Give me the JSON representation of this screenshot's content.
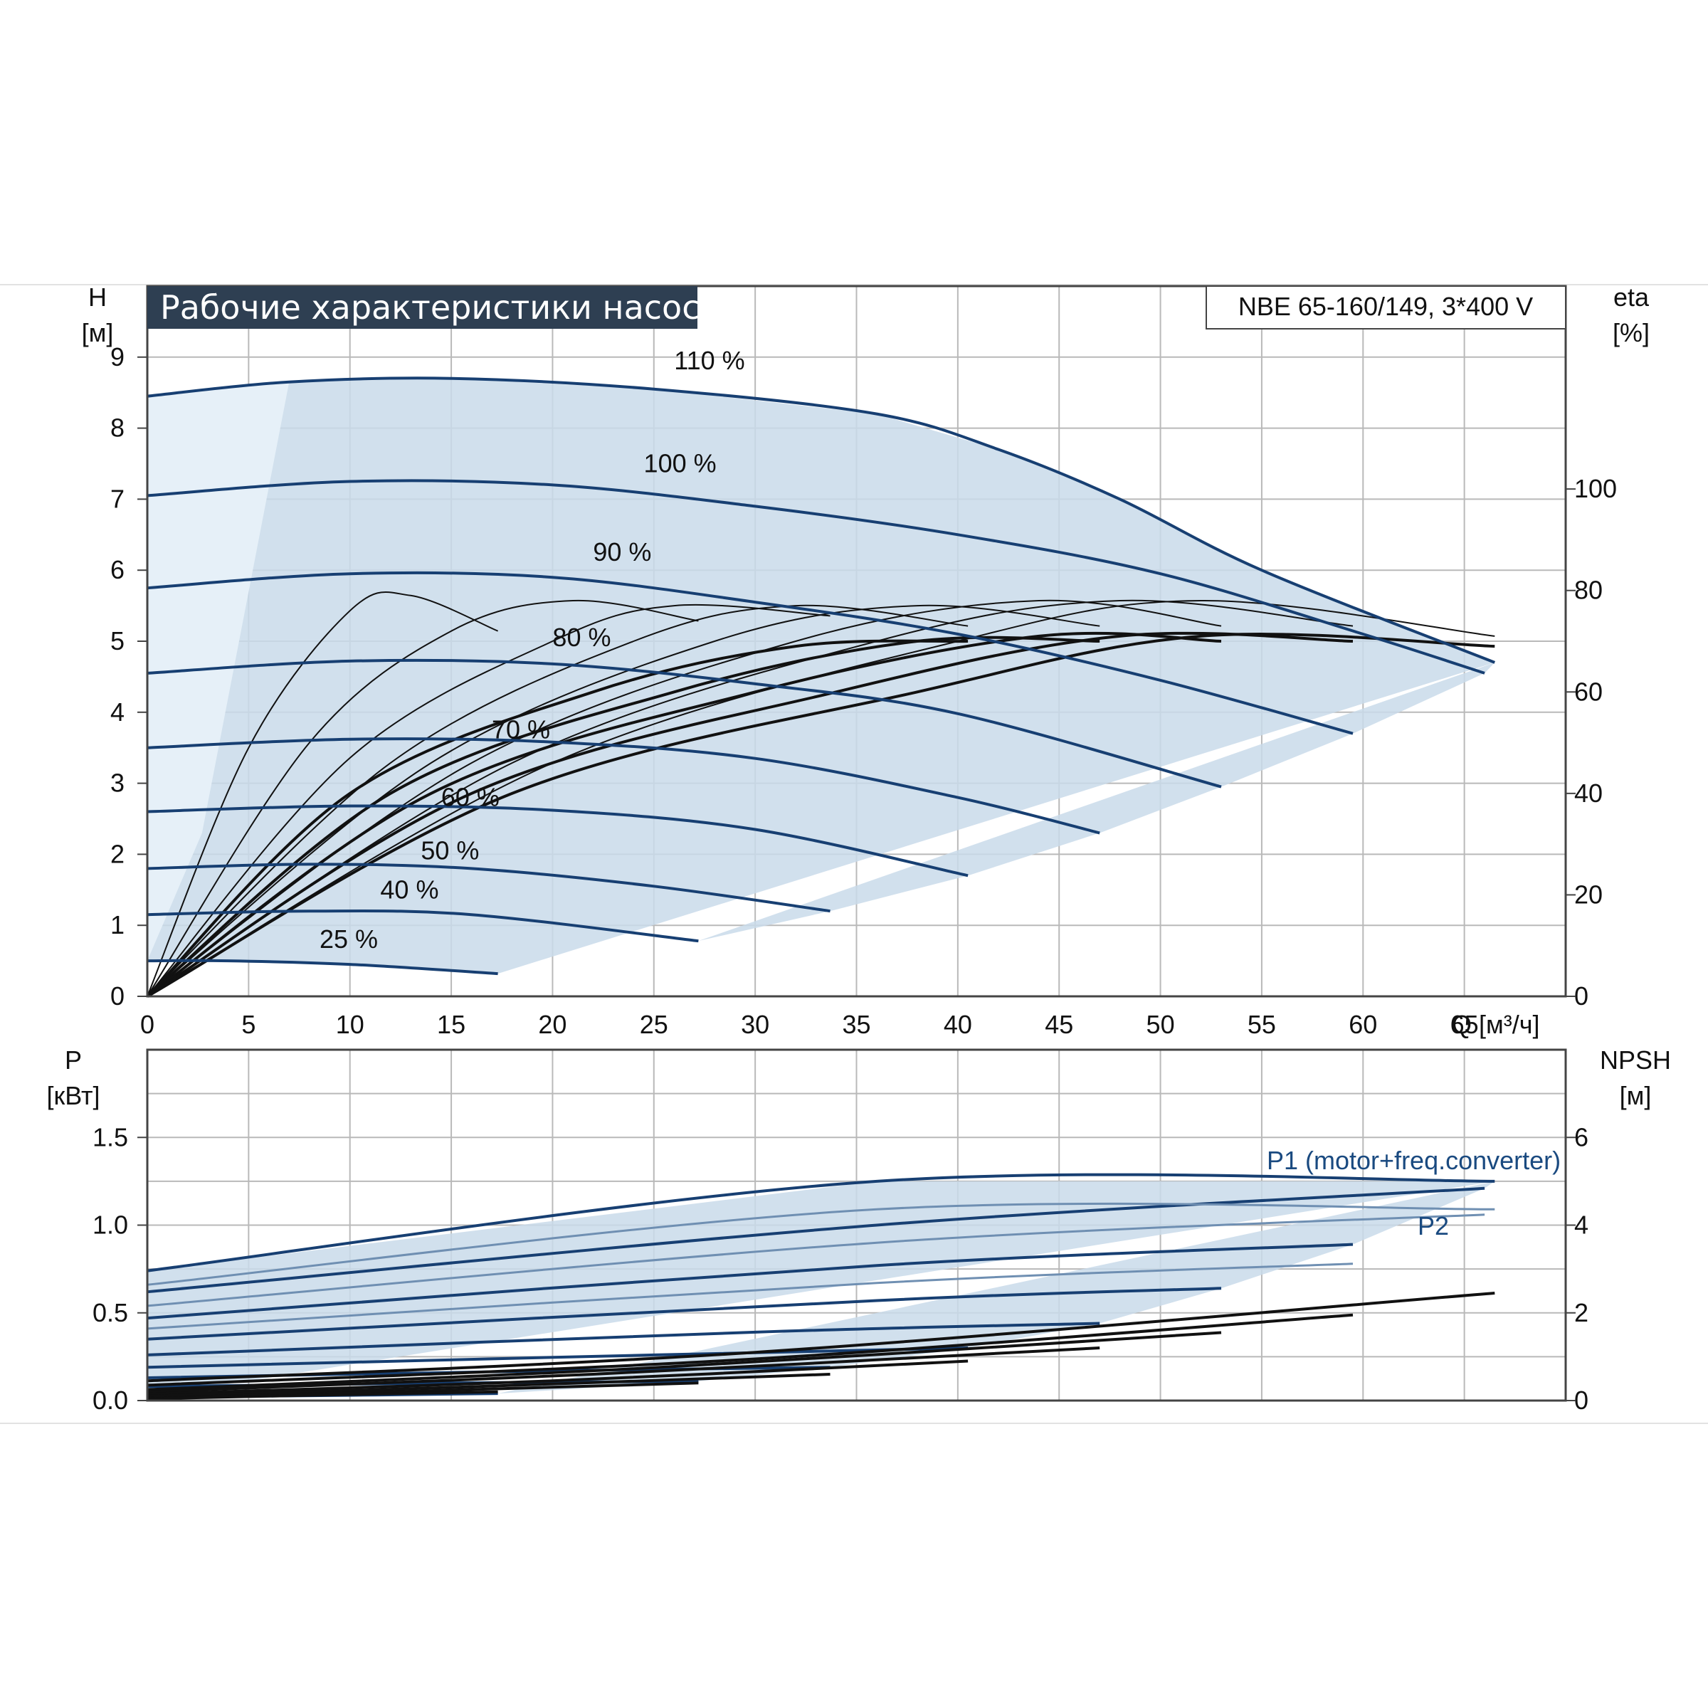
{
  "header": {
    "title": "Рабочие характеристики насоса",
    "model": "NBE 65-160/149, 3*400 V"
  },
  "colors": {
    "curve_blue": "#173f72",
    "efficiency_black": "#111111",
    "area_fill": "#c9daea",
    "area_fill_light": "#e6f0f8",
    "grid": "#b9b9b9",
    "title_bg": "#2e3f52"
  },
  "axes": {
    "h_name": "H",
    "h_unit": "[м]",
    "eta_name": "eta",
    "eta_unit": "[%]",
    "q_label": "Q [м³/ч]",
    "p_name": "P",
    "p_unit": "[кВт]",
    "npsh_name": "NPSH",
    "npsh_unit": "[м]"
  },
  "chart_data": [
    {
      "type": "line",
      "title": "Рабочие характеристики насоса",
      "xlabel": "Q [м³/ч]",
      "ylabel": "H [м]",
      "y2label": "eta [%]",
      "xlim": [
        0,
        70
      ],
      "ylim": [
        0,
        10
      ],
      "y2lim": [
        0,
        140
      ],
      "x_ticks": [
        0,
        5,
        10,
        15,
        20,
        25,
        30,
        35,
        40,
        45,
        50,
        55,
        60,
        65
      ],
      "y_ticks": [
        0,
        1,
        2,
        3,
        4,
        5,
        6,
        7,
        8,
        9
      ],
      "y2_ticks": [
        0,
        20,
        40,
        60,
        80,
        100
      ],
      "grid": true,
      "head_curves": [
        {
          "name": "110 %",
          "x": [
            0,
            7,
            15,
            25,
            36,
            42,
            48,
            55,
            66.5
          ],
          "y": [
            8.45,
            8.65,
            8.7,
            8.55,
            8.2,
            7.7,
            7.0,
            6.0,
            4.7
          ]
        },
        {
          "name": "100 %",
          "x": [
            0,
            10,
            20,
            30,
            40,
            50,
            60,
            66
          ],
          "y": [
            7.05,
            7.25,
            7.2,
            6.9,
            6.5,
            5.95,
            5.1,
            4.55
          ]
        },
        {
          "name": "90 %",
          "x": [
            0,
            10,
            20,
            30,
            40,
            50,
            59.5
          ],
          "y": [
            5.75,
            5.95,
            5.9,
            5.55,
            5.1,
            4.45,
            3.7
          ]
        },
        {
          "name": "80 %",
          "x": [
            0,
            10,
            20,
            30,
            40,
            53
          ],
          "y": [
            4.55,
            4.72,
            4.68,
            4.4,
            3.98,
            2.95
          ]
        },
        {
          "name": "70 %",
          "x": [
            0,
            10,
            20,
            30,
            40,
            47
          ],
          "y": [
            3.5,
            3.62,
            3.58,
            3.35,
            2.8,
            2.3
          ]
        },
        {
          "name": "60 %",
          "x": [
            0,
            10,
            20,
            30,
            40.5
          ],
          "y": [
            2.6,
            2.68,
            2.62,
            2.35,
            1.7
          ]
        },
        {
          "name": "50 %",
          "x": [
            0,
            8,
            16,
            25,
            33.7
          ],
          "y": [
            1.8,
            1.86,
            1.8,
            1.55,
            1.2
          ]
        },
        {
          "name": "40 %",
          "x": [
            0,
            8,
            16,
            27.2
          ],
          "y": [
            1.15,
            1.2,
            1.15,
            0.78
          ]
        },
        {
          "name": "25 %",
          "x": [
            0,
            4,
            10,
            17.3
          ],
          "y": [
            0.5,
            0.5,
            0.45,
            0.32
          ]
        }
      ],
      "efficiency_curves": [
        {
          "x": [
            0,
            5,
            10,
            13,
            17.3
          ],
          "y": [
            0,
            49,
            76,
            79,
            72
          ]
        },
        {
          "x": [
            0,
            8,
            15,
            21,
            27.2
          ],
          "y": [
            0,
            50,
            72,
            78,
            74
          ]
        },
        {
          "x": [
            0,
            10,
            20,
            26,
            33.7
          ],
          "y": [
            0,
            47,
            70,
            77,
            75
          ]
        },
        {
          "x": [
            0,
            12,
            24,
            32,
            40.5
          ],
          "y": [
            0,
            46,
            70,
            77,
            73
          ]
        },
        {
          "x": [
            0,
            14,
            28,
            38,
            47
          ],
          "y": [
            0,
            46,
            70,
            77,
            73
          ]
        },
        {
          "x": [
            0,
            16,
            32,
            44,
            53
          ],
          "y": [
            0,
            46,
            70,
            78,
            73
          ]
        },
        {
          "x": [
            0,
            18,
            36,
            48,
            59.5
          ],
          "y": [
            0,
            46,
            70,
            78,
            73
          ]
        },
        {
          "x": [
            0,
            20,
            40,
            52,
            66.5
          ],
          "y": [
            0,
            46,
            70,
            78,
            71
          ]
        },
        {
          "x": [
            0,
            10,
            22,
            32,
            40.5
          ],
          "y": [
            0,
            40,
            60,
            69,
            70
          ]
        },
        {
          "x": [
            0,
            12,
            26,
            38,
            47
          ],
          "y": [
            0,
            40,
            60,
            70,
            70
          ]
        },
        {
          "x": [
            0,
            14,
            30,
            44,
            53
          ],
          "y": [
            0,
            40,
            60,
            71,
            70
          ]
        },
        {
          "x": [
            0,
            16,
            34,
            48,
            59.5
          ],
          "y": [
            0,
            40,
            60,
            71,
            70
          ]
        },
        {
          "x": [
            0,
            18,
            38,
            52,
            66.5
          ],
          "y": [
            0,
            40,
            60,
            71,
            69
          ]
        }
      ]
    },
    {
      "type": "line",
      "xlabel": "Q [м³/ч]",
      "ylabel": "P [кВт]",
      "y2label": "NPSH [м]",
      "xlim": [
        0,
        70
      ],
      "ylim": [
        0,
        2
      ],
      "y2lim": [
        0,
        8
      ],
      "y_ticks": [
        0.0,
        0.5,
        1.0,
        1.5
      ],
      "y_tick_labels": [
        "0.0",
        "0.5",
        "1.0",
        "1.5"
      ],
      "y2_ticks": [
        0,
        2,
        4,
        6
      ],
      "grid": true,
      "power_labels": [
        "P1 (motor+freq.converter)",
        "P2"
      ],
      "p1_curves": [
        {
          "x": [
            0,
            36,
            66.5
          ],
          "y": [
            0.74,
            1.25,
            1.25
          ]
        },
        {
          "x": [
            0,
            36,
            66
          ],
          "y": [
            0.62,
            1.0,
            1.21
          ]
        },
        {
          "x": [
            0,
            36,
            59.5
          ],
          "y": [
            0.47,
            0.77,
            0.89
          ]
        },
        {
          "x": [
            0,
            36,
            53
          ],
          "y": [
            0.35,
            0.57,
            0.64
          ]
        },
        {
          "x": [
            0,
            30,
            47
          ],
          "y": [
            0.26,
            0.39,
            0.44
          ]
        },
        {
          "x": [
            0,
            25,
            40.5
          ],
          "y": [
            0.19,
            0.26,
            0.3
          ]
        },
        {
          "x": [
            0,
            20,
            33.7
          ],
          "y": [
            0.13,
            0.17,
            0.19
          ]
        },
        {
          "x": [
            0,
            15,
            27.2
          ],
          "y": [
            0.08,
            0.1,
            0.11
          ]
        },
        {
          "x": [
            0,
            10,
            17.3
          ],
          "y": [
            0.02,
            0.03,
            0.04
          ]
        }
      ],
      "p2_curves": [
        {
          "x": [
            0,
            36,
            66.5
          ],
          "y": [
            0.66,
            1.09,
            1.09
          ]
        },
        {
          "x": [
            0,
            36,
            66
          ],
          "y": [
            0.54,
            0.9,
            1.06
          ]
        },
        {
          "x": [
            0,
            36,
            59.5
          ],
          "y": [
            0.41,
            0.67,
            0.78
          ]
        }
      ],
      "npsh_curves": [
        {
          "x": [
            0,
            30,
            66.5
          ],
          "y": [
            0.45,
            1.1,
            2.45
          ]
        },
        {
          "x": [
            0,
            30,
            59.5
          ],
          "y": [
            0.35,
            0.95,
            1.95
          ]
        },
        {
          "x": [
            0,
            25,
            53
          ],
          "y": [
            0.25,
            0.75,
            1.55
          ]
        },
        {
          "x": [
            0,
            22,
            47
          ],
          "y": [
            0.2,
            0.6,
            1.2
          ]
        },
        {
          "x": [
            0,
            20,
            40.5
          ],
          "y": [
            0.15,
            0.45,
            0.9
          ]
        },
        {
          "x": [
            0,
            15,
            33.7
          ],
          "y": [
            0.1,
            0.3,
            0.6
          ]
        },
        {
          "x": [
            0,
            12,
            27.2
          ],
          "y": [
            0.06,
            0.2,
            0.4
          ]
        },
        {
          "x": [
            0,
            8,
            17.3
          ],
          "y": [
            0.04,
            0.12,
            0.2
          ]
        }
      ]
    }
  ]
}
